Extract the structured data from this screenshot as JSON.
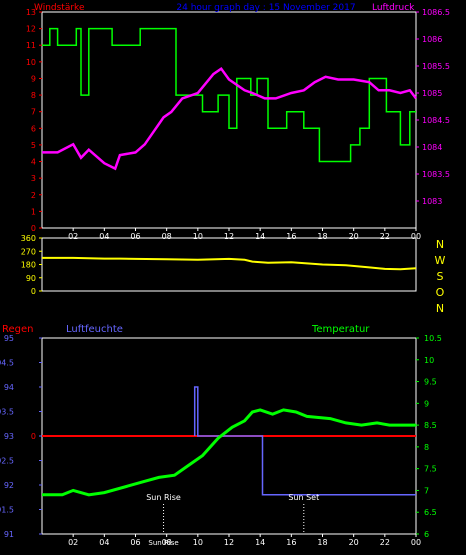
{
  "colors": {
    "background": "#000000",
    "frame": "#ffffff",
    "wind_series": "#00ff00",
    "pressure_series": "#ff00ff",
    "wind_dir_series": "#ffff00",
    "rain_series": "#ff0000",
    "humidity_series": "#6666ff",
    "temperature_series": "#00ff00",
    "title": "#0000ff",
    "left_axis_top": "#ff0000",
    "right_axis_top": "#ff00ff",
    "axis_mid": "#ffff00",
    "axis_mid_right": "#ffff00",
    "left_axis_bottom": "#6666ff",
    "right_axis_bottom": "#00ff00",
    "time_axis": "#ffffff"
  },
  "header": {
    "title": "24 hour graph day : 15 November 2017",
    "wind_label": "Windstärke",
    "pressure_label": "Luftdruck"
  },
  "bottom_labels": {
    "rain": "Regen",
    "humidity": "Luftfeuchte",
    "temperature": "Temperatur",
    "sunrise": "Sun Rise",
    "sunset": "Sun Set",
    "sunrise_axis": "Sun Rise"
  },
  "compass": [
    "N",
    "W",
    "S",
    "O",
    "N"
  ],
  "chart_data": [
    {
      "type": "line",
      "title": "24 hour graph day : 15 November 2017",
      "x_tick_labels": [
        "02",
        "04",
        "06",
        "08",
        "10",
        "12",
        "14",
        "16",
        "18",
        "20",
        "22",
        "00"
      ],
      "x": [
        0,
        24
      ],
      "series": [
        {
          "name": "Windstärke",
          "axis": "left",
          "step": true,
          "points": [
            [
              0,
              11
            ],
            [
              0.5,
              12
            ],
            [
              1,
              11
            ],
            [
              2.2,
              12
            ],
            [
              2.5,
              8
            ],
            [
              3,
              12
            ],
            [
              4.5,
              11
            ],
            [
              6.3,
              12
            ],
            [
              8.6,
              8
            ],
            [
              10.3,
              7
            ],
            [
              11.3,
              8
            ],
            [
              12,
              6
            ],
            [
              12.5,
              9
            ],
            [
              13.4,
              8
            ],
            [
              13.8,
              9
            ],
            [
              14.5,
              6
            ],
            [
              15.7,
              7
            ],
            [
              16.8,
              6
            ],
            [
              17.8,
              4
            ],
            [
              19.8,
              5
            ],
            [
              20.4,
              6
            ],
            [
              21,
              9
            ],
            [
              22.1,
              7
            ],
            [
              23,
              5
            ],
            [
              23.6,
              7
            ],
            [
              24,
              7
            ]
          ]
        },
        {
          "name": "Luftdruck",
          "axis": "right",
          "points": [
            [
              0,
              1083.9
            ],
            [
              1,
              1083.9
            ],
            [
              2,
              1084.05
            ],
            [
              2.5,
              1083.8
            ],
            [
              3,
              1083.95
            ],
            [
              4,
              1083.7
            ],
            [
              4.7,
              1083.6
            ],
            [
              5,
              1083.85
            ],
            [
              6,
              1083.9
            ],
            [
              6.6,
              1084.05
            ],
            [
              7.2,
              1084.3
            ],
            [
              7.8,
              1084.55
            ],
            [
              8.3,
              1084.65
            ],
            [
              9,
              1084.9
            ],
            [
              10,
              1085
            ],
            [
              11,
              1085.35
            ],
            [
              11.5,
              1085.45
            ],
            [
              12,
              1085.25
            ],
            [
              12.5,
              1085.15
            ],
            [
              13,
              1085.05
            ],
            [
              13.5,
              1085
            ],
            [
              14.3,
              1084.9
            ],
            [
              15,
              1084.9
            ],
            [
              16,
              1085
            ],
            [
              16.8,
              1085.05
            ],
            [
              17.5,
              1085.2
            ],
            [
              18.2,
              1085.3
            ],
            [
              19,
              1085.25
            ],
            [
              20,
              1085.25
            ],
            [
              21,
              1085.2
            ],
            [
              21.6,
              1085.05
            ],
            [
              22.3,
              1085.05
            ],
            [
              23,
              1085
            ],
            [
              23.6,
              1085.05
            ],
            [
              24,
              1084.9
            ]
          ]
        }
      ],
      "ylim_left": [
        0,
        13
      ],
      "ylim_right": [
        1082.5,
        1086.5
      ]
    },
    {
      "type": "line",
      "x": [
        0,
        24
      ],
      "series": [
        {
          "name": "Windrichtung",
          "points": [
            [
              0,
              225
            ],
            [
              2,
              225
            ],
            [
              4,
              220
            ],
            [
              5,
              220
            ],
            [
              6,
              218
            ],
            [
              8,
              215
            ],
            [
              10,
              212
            ],
            [
              12,
              218
            ],
            [
              13,
              212
            ],
            [
              13.5,
              200
            ],
            [
              14.5,
              192
            ],
            [
              16,
              195
            ],
            [
              18,
              180
            ],
            [
              19.5,
              175
            ],
            [
              21,
              160
            ],
            [
              22,
              150
            ],
            [
              23,
              148
            ],
            [
              24,
              155
            ]
          ]
        }
      ],
      "ylim": [
        0,
        360
      ]
    },
    {
      "type": "line",
      "x_tick_labels": [
        "02",
        "04",
        "06",
        "08",
        "10",
        "12",
        "14",
        "16",
        "18",
        "20",
        "22",
        "00"
      ],
      "x": [
        0,
        24
      ],
      "series": [
        {
          "name": "Regen",
          "axis": "left",
          "points": [
            [
              0,
              0
            ],
            [
              24,
              0
            ]
          ]
        },
        {
          "name": "Luftfeuchte",
          "axis": "left",
          "step": true,
          "points": [
            [
              9.8,
              93
            ],
            [
              9.8,
              94
            ],
            [
              10,
              93
            ],
            [
              14,
              93
            ],
            [
              14.15,
              91.8
            ],
            [
              24,
              91.8
            ]
          ]
        },
        {
          "name": "Temperatur",
          "axis": "right",
          "points": [
            [
              0,
              6.9
            ],
            [
              1.3,
              6.9
            ],
            [
              2,
              7
            ],
            [
              3,
              6.9
            ],
            [
              4,
              6.95
            ],
            [
              5.5,
              7.1
            ],
            [
              6.5,
              7.2
            ],
            [
              7.5,
              7.3
            ],
            [
              8.5,
              7.35
            ],
            [
              9.3,
              7.55
            ],
            [
              10.3,
              7.8
            ],
            [
              11.3,
              8.2
            ],
            [
              12.2,
              8.45
            ],
            [
              13,
              8.6
            ],
            [
              13.5,
              8.8
            ],
            [
              14,
              8.85
            ],
            [
              14.8,
              8.75
            ],
            [
              15.5,
              8.85
            ],
            [
              16.3,
              8.8
            ],
            [
              17,
              8.7
            ],
            [
              18.5,
              8.65
            ],
            [
              19.5,
              8.55
            ],
            [
              20.5,
              8.5
            ],
            [
              21.5,
              8.55
            ],
            [
              22.3,
              8.5
            ],
            [
              24,
              8.5
            ]
          ]
        }
      ],
      "ylim_left_humidity": [
        91,
        95
      ],
      "ylim_right": [
        6,
        10.5
      ],
      "sunrise_x": 7.8,
      "sunset_x": 16.8
    }
  ],
  "axes": {
    "top_left_ticks": [
      "13",
      "12",
      "11",
      "10",
      "9",
      "8",
      "7",
      "6",
      "5",
      "4",
      "3",
      "2",
      "1",
      "0"
    ],
    "top_right_ticks": [
      "1086.5",
      "1086",
      "1085.5",
      "1085",
      "1084.5",
      "1084",
      "1083.5",
      "1083"
    ],
    "mid_left_ticks": [
      "360",
      "270",
      "180",
      "90",
      "0"
    ],
    "bottom_left_ticks": [
      "95",
      "94.5",
      "94",
      "93.5",
      "93",
      "92.5",
      "92",
      "91.5",
      "91"
    ],
    "bottom_rain_tick": "0",
    "bottom_right_ticks": [
      "10.5",
      "10",
      "9.5",
      "9",
      "8.5",
      "8",
      "7.5",
      "7",
      "6.5",
      "6"
    ]
  }
}
